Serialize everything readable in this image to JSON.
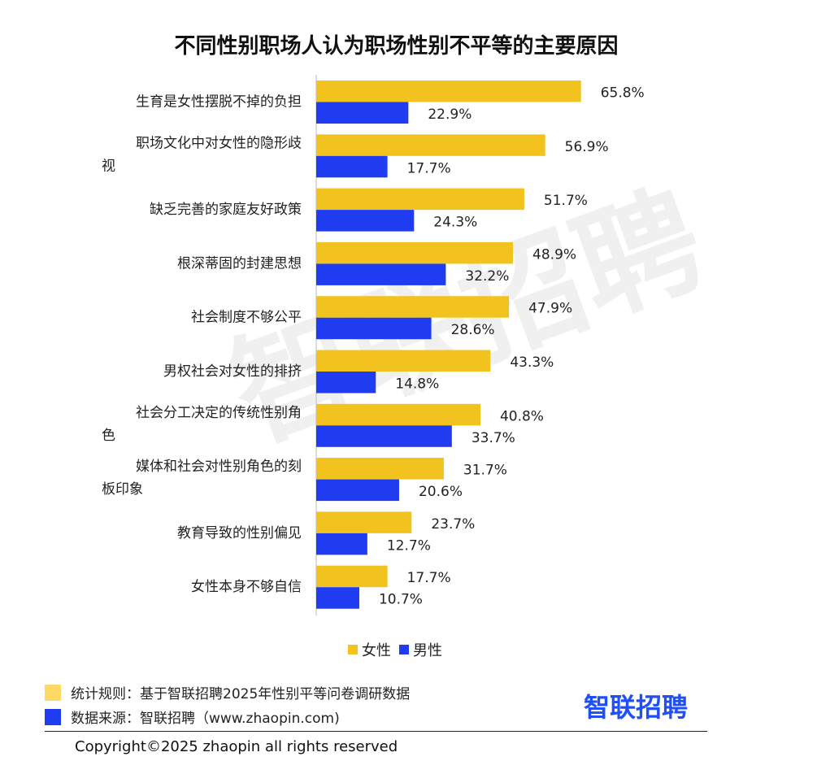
{
  "chart_data": {
    "type": "bar",
    "orientation": "horizontal",
    "title": "不同性别职场人认为职场性别不平等的主要原因",
    "categories": [
      "生育是女性摆脱不掉的负担",
      "职场文化中对女性的隐形歧视",
      "缺乏完善的家庭友好政策",
      "根深蒂固的封建思想",
      "社会制度不够公平",
      "男权社会对女性的排挤",
      "社会分工决定的传统性别角色",
      "媒体和社会对性别角色的刻板印象",
      "教育导致的性别偏见",
      "女性本身不够自信"
    ],
    "series": [
      {
        "name": "女性",
        "color": "#f2c31f",
        "values": [
          65.8,
          56.9,
          51.7,
          48.9,
          47.9,
          43.3,
          40.8,
          31.7,
          23.7,
          17.7
        ],
        "labels": [
          "65.8%",
          "56.9%",
          "51.7%",
          "48.9%",
          "47.9%",
          "43.3%",
          "40.8%",
          "31.7%",
          "23.7%",
          "17.7%"
        ]
      },
      {
        "name": "男性",
        "color": "#1f3cf0",
        "values": [
          22.9,
          17.7,
          24.3,
          32.2,
          28.6,
          14.8,
          33.7,
          20.6,
          12.7,
          10.7
        ],
        "labels": [
          "22.9%",
          "17.7%",
          "24.3%",
          "32.2%",
          "28.6%",
          "14.8%",
          "33.7%",
          "20.6%",
          "12.7%",
          "10.7%"
        ]
      }
    ],
    "xlim": [
      0,
      100
    ],
    "legend_position": "bottom"
  },
  "watermark": "智联招聘",
  "footer": {
    "rule_text": "统计规则：基于智联招聘2025年性别平等问卷调研数据",
    "rule_color": "#ffd966",
    "source_text": "数据来源：智联招聘（www.zhaopin.com)",
    "source_color": "#1f3cf0",
    "brand": "智联招聘",
    "copyright": "Copyright©2025 zhaopin all rights reserved"
  }
}
